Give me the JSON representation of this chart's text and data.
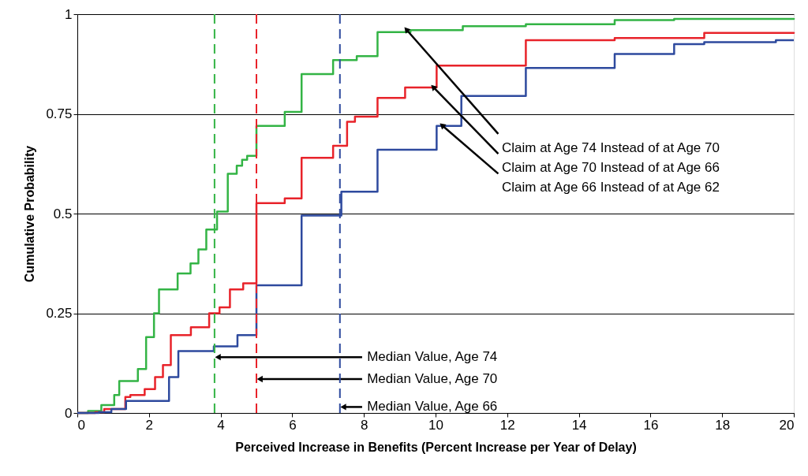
{
  "chart_data": {
    "type": "step",
    "xlabel": "Perceived Increase in Benefits (Percent Increase per Year of Delay)",
    "ylabel": "Cumulative Probability",
    "xlim": [
      0,
      20
    ],
    "xticks": [
      0,
      2,
      4,
      6,
      8,
      10,
      12,
      14,
      16,
      18,
      20
    ],
    "ylim": [
      0,
      1
    ],
    "yticks": [
      0,
      0.25,
      0.5,
      0.75,
      1
    ],
    "grid": "y",
    "line_style": "solid",
    "marker": "none",
    "series": [
      {
        "color": "#33b445",
        "x": [
          0,
          0.3,
          0.67,
          1.03,
          1.17,
          1.69,
          1.92,
          2.14,
          2.28,
          2.8,
          3.16,
          3.38,
          3.6,
          3.9,
          4.2,
          4.45,
          4.6,
          4.74,
          5.0,
          5.79,
          6.26,
          7.14,
          7.8,
          8.38,
          9.3,
          10.76,
          12.52,
          15.0,
          16.66,
          20
        ],
        "values": [
          0,
          0.005,
          0.02,
          0.045,
          0.08,
          0.11,
          0.19,
          0.25,
          0.31,
          0.35,
          0.375,
          0.41,
          0.46,
          0.505,
          0.6,
          0.62,
          0.635,
          0.645,
          0.72,
          0.755,
          0.85,
          0.885,
          0.895,
          0.955,
          0.96,
          0.97,
          0.975,
          0.985,
          0.988,
          0.99
        ]
      },
      {
        "color": "#e8232a",
        "x": [
          0,
          0.5,
          0.75,
          1.34,
          1.48,
          1.88,
          2.17,
          2.39,
          2.61,
          3.17,
          3.68,
          3.97,
          4.26,
          4.63,
          5.0,
          5.79,
          6.26,
          7.14,
          7.53,
          7.75,
          8.38,
          9.15,
          10.03,
          12.52,
          15.0,
          17.5,
          20
        ],
        "values": [
          0,
          0.002,
          0.01,
          0.04,
          0.045,
          0.06,
          0.09,
          0.12,
          0.195,
          0.215,
          0.25,
          0.265,
          0.31,
          0.325,
          0.526,
          0.538,
          0.64,
          0.67,
          0.73,
          0.743,
          0.79,
          0.816,
          0.871,
          0.935,
          0.94,
          0.953,
          0.955
        ]
      },
      {
        "color": "#2e4a9e",
        "x": [
          0,
          0.6,
          0.95,
          1.36,
          2.56,
          2.82,
          3.81,
          4.47,
          5.0,
          6.26,
          7.37,
          8.38,
          10.03,
          10.72,
          12.52,
          15.0,
          16.66,
          17.5,
          19.5,
          20
        ],
        "values": [
          0,
          0.002,
          0.01,
          0.03,
          0.09,
          0.155,
          0.167,
          0.195,
          0.32,
          0.495,
          0.555,
          0.66,
          0.72,
          0.795,
          0.865,
          0.9,
          0.925,
          0.93,
          0.935,
          0.935
        ]
      }
    ],
    "ref_lines": [
      {
        "axis": "x",
        "value": 3.83,
        "label": "Median Value, Age 74",
        "color": "#33b445",
        "line_style": "dashed"
      },
      {
        "axis": "x",
        "value": 5.0,
        "label": "Median Value, Age 70",
        "color": "#e8232a",
        "line_style": "dashed"
      },
      {
        "axis": "x",
        "value": 7.33,
        "label": "Median Value, Age 66",
        "color": "#2e4a9e",
        "line_style": "dashed"
      }
    ],
    "annotations": [
      {
        "text": "Claim at Age 74 Instead of at Age 70",
        "x": 9.2,
        "y": 0.96
      },
      {
        "text": "Claim at Age 70 Instead of at Age 66",
        "x": 9.95,
        "y": 0.816
      },
      {
        "text": "Claim at Age 66 Instead of at Age 62",
        "x": 10.2,
        "y": 0.72
      }
    ]
  }
}
